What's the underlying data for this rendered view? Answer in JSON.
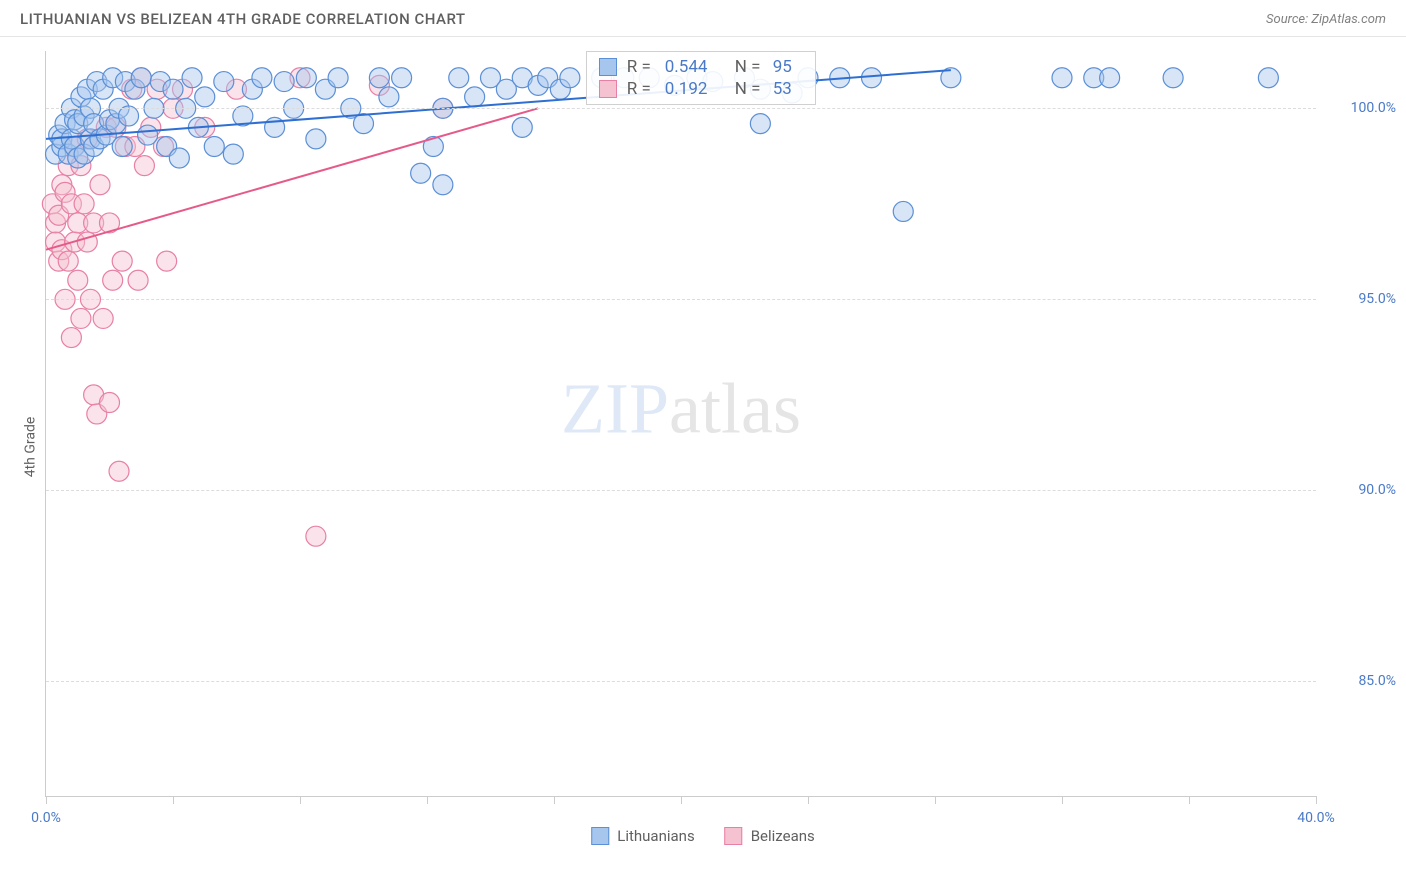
{
  "header": {
    "title": "LITHUANIAN VS BELIZEAN 4TH GRADE CORRELATION CHART",
    "source": "Source: ZipAtlas.com"
  },
  "chart": {
    "type": "scatter",
    "ylabel": "4th Grade",
    "watermark_strong": "ZIP",
    "watermark_light": "atlas",
    "background_color": "#ffffff",
    "grid_color": "#dcdcdc",
    "axis_color": "#cccccc",
    "tick_label_color": "#4a7ac7",
    "xlim": [
      0,
      40
    ],
    "ylim": [
      82,
      101.5
    ],
    "xticks": [
      0,
      4,
      8,
      12,
      16,
      20,
      24,
      28,
      32,
      36,
      40
    ],
    "xtick_labels": {
      "0": "0.0%",
      "40": "40.0%"
    },
    "yticks": [
      85,
      90,
      95,
      100
    ],
    "ytick_labels": {
      "85": "85.0%",
      "90": "90.0%",
      "95": "95.0%",
      "100": "100.0%"
    },
    "marker_radius": 10,
    "marker_opacity": 0.45,
    "line_width": 2,
    "series": [
      {
        "name": "Lithuanians",
        "color_fill": "#a6c6ed",
        "color_stroke": "#5b8fd6",
        "line_color": "#2e6fd1",
        "R_label": "R =",
        "R_value": "0.544",
        "N_label": "N =",
        "N_value": "95",
        "regression": {
          "x1": 0,
          "y1": 99.2,
          "x2": 28.5,
          "y2": 101.0
        },
        "points": [
          [
            0.3,
            98.8
          ],
          [
            0.4,
            99.3
          ],
          [
            0.5,
            99.0
          ],
          [
            0.5,
            99.2
          ],
          [
            0.6,
            99.6
          ],
          [
            0.7,
            98.8
          ],
          [
            0.8,
            99.2
          ],
          [
            0.8,
            100.0
          ],
          [
            0.9,
            99.0
          ],
          [
            0.9,
            99.7
          ],
          [
            1.0,
            98.7
          ],
          [
            1.0,
            99.6
          ],
          [
            1.1,
            100.3
          ],
          [
            1.2,
            98.8
          ],
          [
            1.2,
            99.8
          ],
          [
            1.3,
            100.5
          ],
          [
            1.4,
            99.2
          ],
          [
            1.4,
            100.0
          ],
          [
            1.5,
            99.0
          ],
          [
            1.5,
            99.6
          ],
          [
            1.6,
            100.7
          ],
          [
            1.7,
            99.2
          ],
          [
            1.8,
            100.5
          ],
          [
            1.9,
            99.3
          ],
          [
            2.0,
            99.7
          ],
          [
            2.1,
            100.8
          ],
          [
            2.2,
            99.6
          ],
          [
            2.3,
            100.0
          ],
          [
            2.4,
            99.0
          ],
          [
            2.5,
            100.7
          ],
          [
            2.6,
            99.8
          ],
          [
            2.8,
            100.5
          ],
          [
            3.0,
            100.8
          ],
          [
            3.2,
            99.3
          ],
          [
            3.4,
            100.0
          ],
          [
            3.6,
            100.7
          ],
          [
            3.8,
            99.0
          ],
          [
            4.0,
            100.5
          ],
          [
            4.2,
            98.7
          ],
          [
            4.4,
            100.0
          ],
          [
            4.6,
            100.8
          ],
          [
            4.8,
            99.5
          ],
          [
            5.0,
            100.3
          ],
          [
            5.3,
            99.0
          ],
          [
            5.6,
            100.7
          ],
          [
            5.9,
            98.8
          ],
          [
            6.2,
            99.8
          ],
          [
            6.5,
            100.5
          ],
          [
            6.8,
            100.8
          ],
          [
            7.2,
            99.5
          ],
          [
            7.5,
            100.7
          ],
          [
            7.8,
            100.0
          ],
          [
            8.2,
            100.8
          ],
          [
            8.5,
            99.2
          ],
          [
            8.8,
            100.5
          ],
          [
            9.2,
            100.8
          ],
          [
            9.6,
            100.0
          ],
          [
            10.0,
            99.6
          ],
          [
            10.5,
            100.8
          ],
          [
            10.8,
            100.3
          ],
          [
            11.2,
            100.8
          ],
          [
            11.8,
            98.3
          ],
          [
            12.2,
            99.0
          ],
          [
            12.5,
            98.0
          ],
          [
            12.5,
            100.0
          ],
          [
            13.0,
            100.8
          ],
          [
            13.5,
            100.3
          ],
          [
            14.0,
            100.8
          ],
          [
            14.5,
            100.5
          ],
          [
            15.0,
            100.8
          ],
          [
            15.0,
            99.5
          ],
          [
            15.5,
            100.6
          ],
          [
            15.8,
            100.8
          ],
          [
            16.2,
            100.5
          ],
          [
            16.5,
            100.8
          ],
          [
            17.5,
            100.8
          ],
          [
            18.2,
            100.8
          ],
          [
            19.0,
            100.8
          ],
          [
            19.8,
            100.6
          ],
          [
            20.5,
            100.8
          ],
          [
            21.0,
            100.7
          ],
          [
            22.0,
            100.8
          ],
          [
            22.5,
            100.5
          ],
          [
            22.5,
            99.6
          ],
          [
            23.5,
            100.4
          ],
          [
            24.0,
            100.8
          ],
          [
            25.0,
            100.8
          ],
          [
            26.0,
            100.8
          ],
          [
            27.0,
            97.3
          ],
          [
            28.5,
            100.8
          ],
          [
            32.0,
            100.8
          ],
          [
            33.0,
            100.8
          ],
          [
            33.5,
            100.8
          ],
          [
            35.5,
            100.8
          ],
          [
            38.5,
            100.8
          ]
        ]
      },
      {
        "name": "Belizeans",
        "color_fill": "#f5c2d1",
        "color_stroke": "#e87fa5",
        "line_color": "#e55a8a",
        "R_label": "R =",
        "R_value": "0.192",
        "N_label": "N =",
        "N_value": "53",
        "regression": {
          "x1": 0,
          "y1": 96.3,
          "x2": 15.5,
          "y2": 100.0
        },
        "points": [
          [
            0.2,
            97.5
          ],
          [
            0.3,
            96.5
          ],
          [
            0.3,
            97.0
          ],
          [
            0.4,
            97.2
          ],
          [
            0.4,
            96.0
          ],
          [
            0.5,
            98.0
          ],
          [
            0.5,
            96.3
          ],
          [
            0.6,
            97.8
          ],
          [
            0.6,
            95.0
          ],
          [
            0.7,
            98.5
          ],
          [
            0.7,
            96.0
          ],
          [
            0.8,
            97.5
          ],
          [
            0.8,
            94.0
          ],
          [
            0.9,
            96.5
          ],
          [
            0.9,
            99.0
          ],
          [
            1.0,
            95.5
          ],
          [
            1.0,
            97.0
          ],
          [
            1.1,
            98.5
          ],
          [
            1.1,
            94.5
          ],
          [
            1.2,
            97.5
          ],
          [
            1.3,
            96.5
          ],
          [
            1.3,
            99.2
          ],
          [
            1.4,
            95.0
          ],
          [
            1.5,
            92.5
          ],
          [
            1.5,
            97.0
          ],
          [
            1.6,
            92.0
          ],
          [
            1.7,
            98.0
          ],
          [
            1.8,
            94.5
          ],
          [
            1.9,
            99.5
          ],
          [
            2.0,
            97.0
          ],
          [
            2.0,
            92.3
          ],
          [
            2.1,
            95.5
          ],
          [
            2.2,
            99.5
          ],
          [
            2.3,
            90.5
          ],
          [
            2.4,
            96.0
          ],
          [
            2.5,
            99.0
          ],
          [
            2.7,
            100.5
          ],
          [
            2.8,
            99.0
          ],
          [
            2.9,
            95.5
          ],
          [
            3.0,
            100.8
          ],
          [
            3.1,
            98.5
          ],
          [
            3.3,
            99.5
          ],
          [
            3.5,
            100.5
          ],
          [
            3.7,
            99.0
          ],
          [
            3.8,
            96.0
          ],
          [
            4.0,
            100.0
          ],
          [
            4.3,
            100.5
          ],
          [
            5.0,
            99.5
          ],
          [
            6.0,
            100.5
          ],
          [
            8.0,
            100.8
          ],
          [
            8.5,
            88.8
          ],
          [
            10.5,
            100.6
          ],
          [
            12.5,
            100.0
          ]
        ]
      }
    ],
    "legend": {
      "items": [
        {
          "label": "Lithuanians",
          "fill": "#a6c6ed",
          "stroke": "#5b8fd6"
        },
        {
          "label": "Belizeans",
          "fill": "#f5c2d1",
          "stroke": "#e87fa5"
        }
      ]
    },
    "stats_box": {
      "left_pct": 42.5,
      "top_pct": 0
    }
  }
}
